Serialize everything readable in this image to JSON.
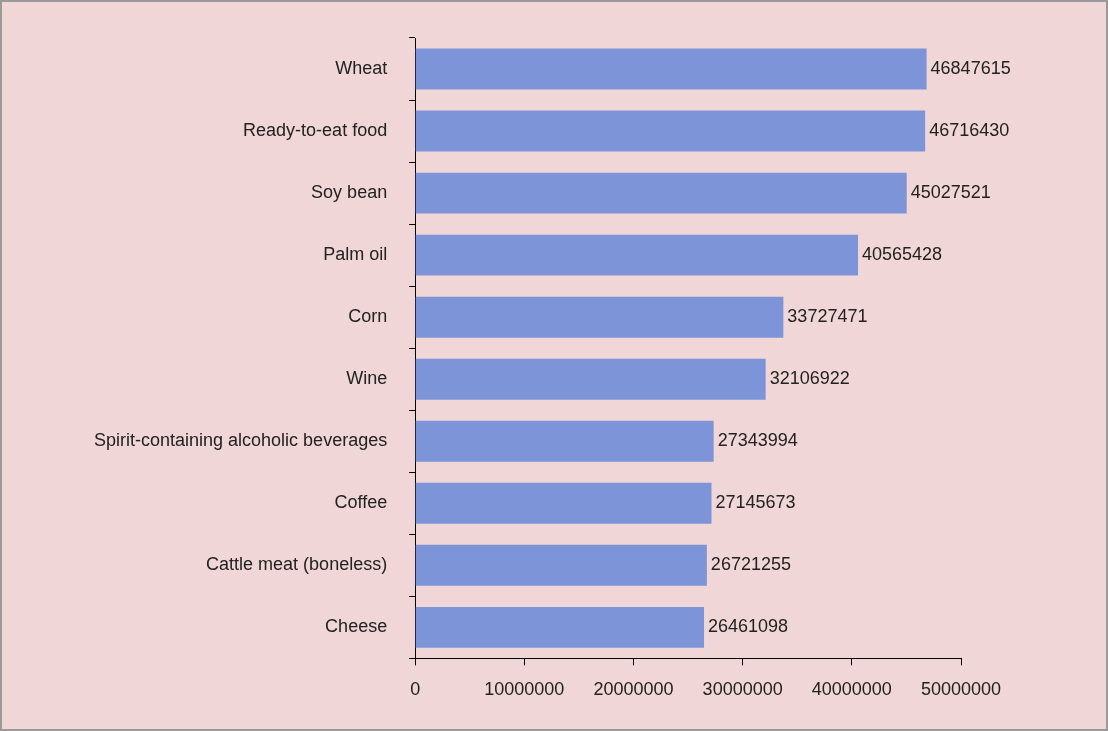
{
  "chart_data": {
    "type": "bar",
    "orientation": "horizontal",
    "categories": [
      "Wheat",
      "Ready-to-eat food",
      "Soy bean",
      "Palm oil",
      "Corn",
      "Wine",
      "Spirit-containing alcoholic beverages",
      "Coffee",
      "Cattle meat (boneless)",
      "Cheese"
    ],
    "values": [
      46847615,
      46716430,
      45027521,
      40565428,
      33727471,
      32106922,
      27343994,
      27145673,
      26721255,
      26461098
    ],
    "color": "#7d95d8",
    "xlim": [
      0,
      50000000
    ],
    "xticks": [
      0,
      10000000,
      20000000,
      30000000,
      40000000,
      50000000
    ],
    "grid": false,
    "legend": false,
    "data_labels": true
  }
}
